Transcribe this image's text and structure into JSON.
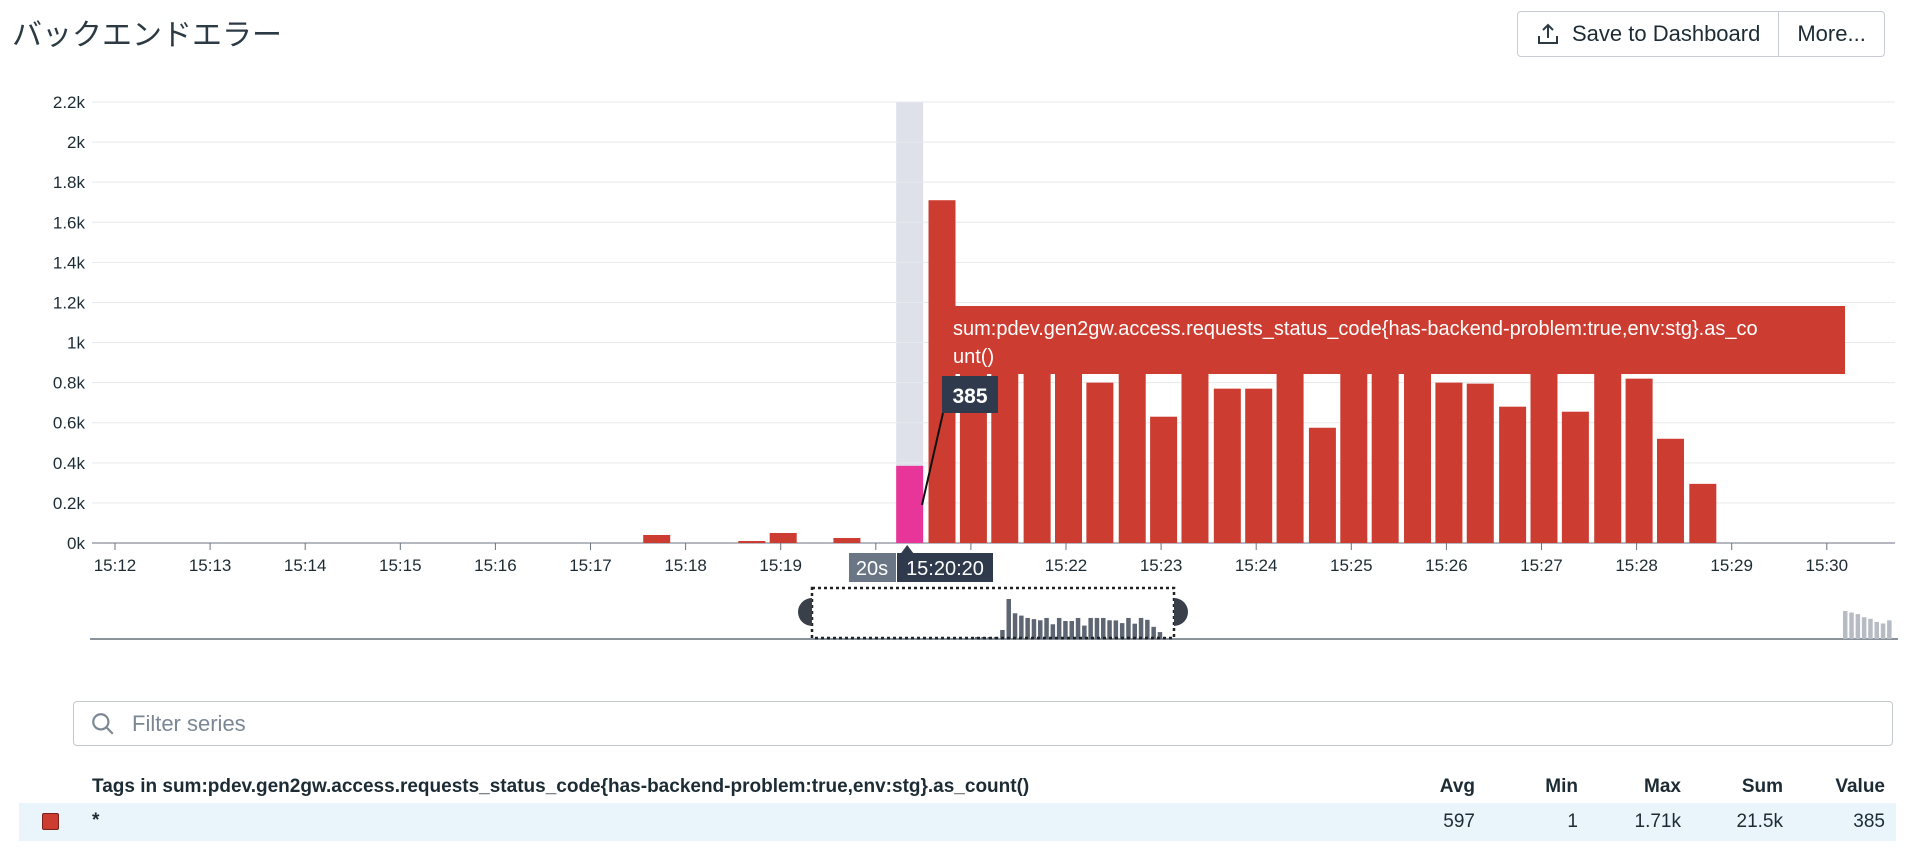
{
  "title": "バックエンドエラー",
  "buttons": {
    "save": "Save to Dashboard",
    "more": "More..."
  },
  "colors": {
    "bar": "#cd3c31",
    "highlight": "#e8359a",
    "grid": "#e6e9ed",
    "cursor_band": "#dfe1ea",
    "tooltip_bg": "#2f3b4c"
  },
  "tooltip": {
    "series_label": "sum:pdev.gen2gw.access.requests_status_code{has-backend-problem:true,env:stg}.as_co",
    "series_label_cont": "unt()",
    "value_label": "385",
    "interval": "20s",
    "time": "15:20:20"
  },
  "chart_data": {
    "type": "bar",
    "title": "バックエンドエラー",
    "xlabel": "",
    "ylabel": "",
    "ylim": [
      0,
      2200
    ],
    "y_ticks": [
      "0k",
      "0.2k",
      "0.4k",
      "0.6k",
      "0.8k",
      "1k",
      "1.2k",
      "1.4k",
      "1.6k",
      "1.8k",
      "2k",
      "2.2k"
    ],
    "x_ticks": [
      "15:12",
      "15:13",
      "15:14",
      "15:15",
      "15:16",
      "15:17",
      "15:18",
      "15:19",
      "15:20",
      "15:21",
      "15:22",
      "15:23",
      "15:24",
      "15:25",
      "15:26",
      "15:27",
      "15:28",
      "15:29",
      "15:30"
    ],
    "x_tick_minutes": [
      12,
      13,
      14,
      15,
      16,
      17,
      18,
      19,
      20,
      21,
      22,
      23,
      24,
      25,
      26,
      27,
      28,
      29,
      30
    ],
    "series": [
      {
        "name": "sum:pdev.gen2gw.access.requests_status_code{has-backend-problem:true,env:stg}.as_count()",
        "points": [
          {
            "t": 17.67,
            "v": 40
          },
          {
            "t": 18.67,
            "v": 10
          },
          {
            "t": 19.0,
            "v": 50
          },
          {
            "t": 19.67,
            "v": 25
          },
          {
            "t": 20.33,
            "v": 385,
            "highlight": true
          },
          {
            "t": 20.67,
            "v": 1710
          },
          {
            "t": 21.0,
            "v": 1100
          },
          {
            "t": 21.33,
            "v": 1000
          },
          {
            "t": 21.67,
            "v": 900
          },
          {
            "t": 22.0,
            "v": 850
          },
          {
            "t": 22.33,
            "v": 800
          },
          {
            "t": 22.67,
            "v": 900
          },
          {
            "t": 23.0,
            "v": 630
          },
          {
            "t": 23.33,
            "v": 900
          },
          {
            "t": 23.67,
            "v": 770
          },
          {
            "t": 24.0,
            "v": 770
          },
          {
            "t": 24.33,
            "v": 900
          },
          {
            "t": 24.67,
            "v": 575
          },
          {
            "t": 25.0,
            "v": 900
          },
          {
            "t": 25.33,
            "v": 900
          },
          {
            "t": 25.67,
            "v": 900
          },
          {
            "t": 26.0,
            "v": 800
          },
          {
            "t": 26.33,
            "v": 795
          },
          {
            "t": 26.67,
            "v": 680
          },
          {
            "t": 27.0,
            "v": 900
          },
          {
            "t": 27.33,
            "v": 655
          },
          {
            "t": 27.67,
            "v": 900
          },
          {
            "t": 28.0,
            "v": 820
          },
          {
            "t": 28.33,
            "v": 520
          },
          {
            "t": 28.67,
            "v": 295
          }
        ]
      }
    ],
    "nav_overview": [
      40,
      10,
      50,
      25,
      385,
      1710,
      1100,
      1000,
      900,
      850,
      800,
      900,
      630,
      900,
      770,
      770,
      900,
      575,
      900,
      900,
      900,
      800,
      795,
      680,
      900,
      655,
      900,
      820,
      520,
      295
    ],
    "nav_right_overview": [
      900,
      850,
      800,
      700,
      650,
      550,
      500,
      600
    ]
  },
  "filter": {
    "placeholder": "Filter series"
  },
  "table": {
    "header": "Tags in sum:pdev.gen2gw.access.requests_status_code{has-backend-problem:true,env:stg}.as_count()",
    "columns": [
      "Avg",
      "Min",
      "Max",
      "Sum",
      "Value"
    ],
    "rows": [
      {
        "tag": "*",
        "avg": "597",
        "min": "1",
        "max": "1.71k",
        "sum": "21.5k",
        "value": "385"
      }
    ]
  }
}
